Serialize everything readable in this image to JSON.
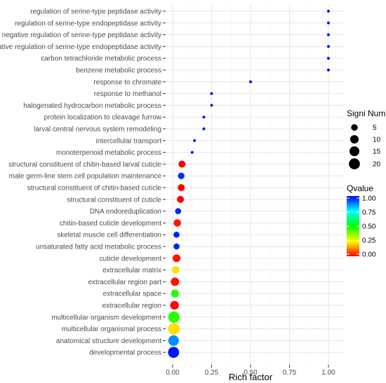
{
  "chart_data": {
    "type": "scatter",
    "xlabel": "Rich factor",
    "ylabel": "",
    "xlim": [
      -0.05,
      1.05
    ],
    "x_ticks": [
      "0.00",
      "0.25",
      "0.50",
      "0.75",
      "1.00"
    ],
    "grid": true,
    "legend_position": "right",
    "size_legend": {
      "title": "Signi Num",
      "values": [
        5,
        10,
        15,
        20
      ]
    },
    "color_legend": {
      "title": "Qvalue",
      "range": [
        0,
        1
      ],
      "ticks": [
        "1.00",
        "0.75",
        "0.50",
        "0.25",
        "0.00"
      ],
      "colors": [
        "#ff0000",
        "#ffff00",
        "#00ff00",
        "#00ffff",
        "#0000ff"
      ]
    },
    "points": [
      {
        "term": "regulation of serine-type peptidase activity",
        "x": 1.0,
        "count": 1,
        "q": 0.99
      },
      {
        "term": "regulation of serine-type endopeptidase activity",
        "x": 1.0,
        "count": 1,
        "q": 0.99
      },
      {
        "term": "negative regulation of serine-type peptidase activity",
        "x": 1.0,
        "count": 1,
        "q": 0.99
      },
      {
        "term": "negative regulation of serine-type endopeptidase activity",
        "x": 1.0,
        "count": 1,
        "q": 0.99
      },
      {
        "term": "carbon tetrachloride metabolic process",
        "x": 1.0,
        "count": 1,
        "q": 0.99
      },
      {
        "term": "benzene metabolic process",
        "x": 1.0,
        "count": 1,
        "q": 0.99
      },
      {
        "term": "response to chromate",
        "x": 0.5,
        "count": 1,
        "q": 0.99
      },
      {
        "term": "response to methanol",
        "x": 0.25,
        "count": 1,
        "q": 0.99
      },
      {
        "term": "halogenated hydrocarbon metabolic process",
        "x": 0.25,
        "count": 1,
        "q": 0.99
      },
      {
        "term": "protein localization to cleavage furrow",
        "x": 0.2,
        "count": 1,
        "q": 0.99
      },
      {
        "term": "larval central nervous system remodeling",
        "x": 0.2,
        "count": 1,
        "q": 0.99
      },
      {
        "term": "intercellular transport",
        "x": 0.14,
        "count": 1,
        "q": 0.99
      },
      {
        "term": "monoterpenoid metabolic process",
        "x": 0.125,
        "count": 1,
        "q": 0.99
      },
      {
        "term": "structural constituent of chitin-based larval cuticle",
        "x": 0.06,
        "count": 6,
        "q": 0.0
      },
      {
        "term": "male germ-line stem cell population maintenance",
        "x": 0.055,
        "count": 5,
        "q": 0.96
      },
      {
        "term": "structural constituent of chitin-based cuticle",
        "x": 0.055,
        "count": 6,
        "q": 0.0
      },
      {
        "term": "structural constituent of cuticle",
        "x": 0.05,
        "count": 6,
        "q": 0.0
      },
      {
        "term": "DNA endoreduplication",
        "x": 0.035,
        "count": 4,
        "q": 0.96
      },
      {
        "term": "chitin-based cuticle development",
        "x": 0.03,
        "count": 7,
        "q": 0.02
      },
      {
        "term": "skeletal muscle cell differentiation",
        "x": 0.025,
        "count": 4,
        "q": 0.97
      },
      {
        "term": "unsaturated fatty acid metabolic process",
        "x": 0.025,
        "count": 4,
        "q": 0.97
      },
      {
        "term": "cuticle development",
        "x": 0.025,
        "count": 8,
        "q": 0.02
      },
      {
        "term": "extracellular matrix",
        "x": 0.02,
        "count": 7,
        "q": 0.22
      },
      {
        "term": "extracellular region part",
        "x": 0.015,
        "count": 10,
        "q": 0.02
      },
      {
        "term": "extracellular space",
        "x": 0.015,
        "count": 8,
        "q": 0.47
      },
      {
        "term": "extracellular region",
        "x": 0.012,
        "count": 11,
        "q": 0.01
      },
      {
        "term": "multicellular organism development",
        "x": 0.008,
        "count": 22,
        "q": 0.46
      },
      {
        "term": "multicellular organismal process",
        "x": 0.008,
        "count": 23,
        "q": 0.22
      },
      {
        "term": "anatomical structure development",
        "x": 0.006,
        "count": 18,
        "q": 0.86
      },
      {
        "term": "developmental process",
        "x": 0.006,
        "count": 20,
        "q": 0.98
      }
    ]
  }
}
